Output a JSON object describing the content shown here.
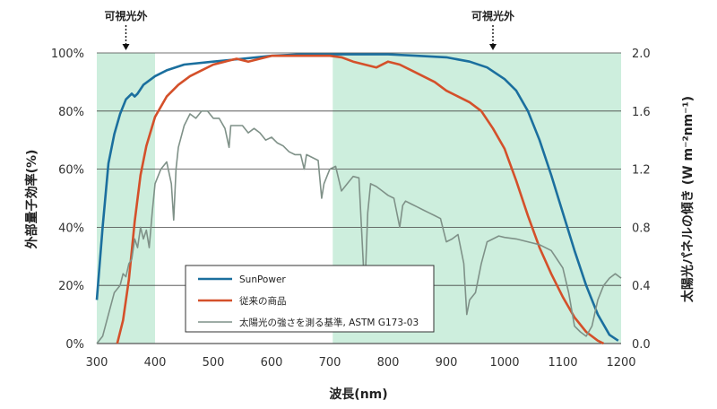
{
  "chart_data": {
    "type": "line",
    "xlabel": "波長(nm)",
    "ylabel_left": "外部量子効率(%)",
    "ylabel_right": "太陽光パネルの傾き (W m⁻²nm⁻¹)",
    "xlim": [
      300,
      1200
    ],
    "ylim_left": [
      0,
      100
    ],
    "ylim_right": [
      0,
      2.0
    ],
    "x_ticks": [
      "300",
      "400",
      "500",
      "600",
      "700",
      "800",
      "900",
      "1000",
      "1100",
      "1200"
    ],
    "y_left_ticks": [
      "0%",
      "20%",
      "40%",
      "60%",
      "80%",
      "100%"
    ],
    "y_right_ticks": [
      "0.0",
      "0.4",
      "0.8",
      "1.2",
      "1.6",
      "2.0"
    ],
    "grid": "horizontal",
    "legend_placement": "bottom-center",
    "shaded_regions": [
      {
        "x": [
          300,
          400
        ],
        "color": "#cdeedd",
        "annotation": "可視光外",
        "arrow_x": 350
      },
      {
        "x": [
          705,
          1200
        ],
        "color": "#cdeedd",
        "annotation": "可視光外",
        "arrow_x": 980
      }
    ],
    "series": [
      {
        "name": "SunPower",
        "axis": "left",
        "color": "#1b6f9e",
        "points": [
          [
            300,
            15
          ],
          [
            310,
            40
          ],
          [
            320,
            62
          ],
          [
            330,
            72
          ],
          [
            340,
            79
          ],
          [
            350,
            84
          ],
          [
            360,
            86
          ],
          [
            365,
            85
          ],
          [
            370,
            86
          ],
          [
            380,
            89
          ],
          [
            400,
            92
          ],
          [
            420,
            94
          ],
          [
            450,
            96
          ],
          [
            500,
            97
          ],
          [
            550,
            98
          ],
          [
            600,
            99
          ],
          [
            650,
            99.5
          ],
          [
            700,
            99.5
          ],
          [
            750,
            99.5
          ],
          [
            800,
            99.5
          ],
          [
            850,
            99
          ],
          [
            900,
            98.5
          ],
          [
            940,
            97
          ],
          [
            970,
            95
          ],
          [
            1000,
            91
          ],
          [
            1020,
            87
          ],
          [
            1040,
            80
          ],
          [
            1060,
            70
          ],
          [
            1080,
            58
          ],
          [
            1100,
            45
          ],
          [
            1120,
            32
          ],
          [
            1140,
            20
          ],
          [
            1160,
            10
          ],
          [
            1180,
            3
          ],
          [
            1195,
            1
          ]
        ]
      },
      {
        "name": "従来の商品",
        "axis": "left",
        "color": "#d4502a",
        "points": [
          [
            335,
            0
          ],
          [
            345,
            8
          ],
          [
            355,
            22
          ],
          [
            365,
            42
          ],
          [
            375,
            58
          ],
          [
            385,
            68
          ],
          [
            400,
            78
          ],
          [
            420,
            85
          ],
          [
            440,
            89
          ],
          [
            460,
            92
          ],
          [
            480,
            94
          ],
          [
            500,
            96
          ],
          [
            520,
            97
          ],
          [
            540,
            98
          ],
          [
            560,
            97
          ],
          [
            580,
            98
          ],
          [
            600,
            99
          ],
          [
            650,
            99
          ],
          [
            700,
            99
          ],
          [
            720,
            98.5
          ],
          [
            740,
            97
          ],
          [
            760,
            96
          ],
          [
            780,
            95
          ],
          [
            800,
            97
          ],
          [
            820,
            96
          ],
          [
            840,
            94
          ],
          [
            860,
            92
          ],
          [
            880,
            90
          ],
          [
            900,
            87
          ],
          [
            920,
            85
          ],
          [
            940,
            83
          ],
          [
            960,
            80
          ],
          [
            980,
            74
          ],
          [
            1000,
            67
          ],
          [
            1020,
            56
          ],
          [
            1040,
            44
          ],
          [
            1060,
            33
          ],
          [
            1080,
            24
          ],
          [
            1100,
            16
          ],
          [
            1120,
            9
          ],
          [
            1140,
            4
          ],
          [
            1160,
            1
          ],
          [
            1170,
            0
          ]
        ]
      },
      {
        "name": "太陽光の強さを測る基準, ASTM G173-03",
        "axis": "right",
        "color": "#7f9188",
        "points": [
          [
            300,
            0
          ],
          [
            310,
            0.05
          ],
          [
            320,
            0.2
          ],
          [
            330,
            0.35
          ],
          [
            340,
            0.4
          ],
          [
            345,
            0.48
          ],
          [
            350,
            0.46
          ],
          [
            355,
            0.55
          ],
          [
            360,
            0.58
          ],
          [
            365,
            0.72
          ],
          [
            370,
            0.66
          ],
          [
            375,
            0.8
          ],
          [
            380,
            0.72
          ],
          [
            385,
            0.78
          ],
          [
            390,
            0.66
          ],
          [
            395,
            0.9
          ],
          [
            400,
            1.1
          ],
          [
            410,
            1.2
          ],
          [
            420,
            1.25
          ],
          [
            428,
            1.1
          ],
          [
            432,
            0.85
          ],
          [
            436,
            1.2
          ],
          [
            440,
            1.35
          ],
          [
            450,
            1.5
          ],
          [
            460,
            1.58
          ],
          [
            470,
            1.55
          ],
          [
            480,
            1.6
          ],
          [
            490,
            1.6
          ],
          [
            500,
            1.55
          ],
          [
            510,
            1.55
          ],
          [
            520,
            1.48
          ],
          [
            527,
            1.35
          ],
          [
            530,
            1.5
          ],
          [
            540,
            1.5
          ],
          [
            550,
            1.5
          ],
          [
            560,
            1.45
          ],
          [
            570,
            1.48
          ],
          [
            580,
            1.45
          ],
          [
            590,
            1.4
          ],
          [
            600,
            1.42
          ],
          [
            610,
            1.38
          ],
          [
            620,
            1.36
          ],
          [
            630,
            1.32
          ],
          [
            640,
            1.3
          ],
          [
            650,
            1.3
          ],
          [
            656,
            1.2
          ],
          [
            660,
            1.3
          ],
          [
            670,
            1.28
          ],
          [
            680,
            1.26
          ],
          [
            686,
            1.0
          ],
          [
            690,
            1.1
          ],
          [
            700,
            1.2
          ],
          [
            710,
            1.22
          ],
          [
            720,
            1.05
          ],
          [
            730,
            1.1
          ],
          [
            740,
            1.15
          ],
          [
            750,
            1.14
          ],
          [
            760,
            0.35
          ],
          [
            765,
            0.9
          ],
          [
            770,
            1.1
          ],
          [
            780,
            1.08
          ],
          [
            790,
            1.05
          ],
          [
            800,
            1.02
          ],
          [
            810,
            1.0
          ],
          [
            820,
            0.8
          ],
          [
            825,
            0.95
          ],
          [
            830,
            0.98
          ],
          [
            840,
            0.96
          ],
          [
            850,
            0.94
          ],
          [
            860,
            0.92
          ],
          [
            870,
            0.9
          ],
          [
            880,
            0.88
          ],
          [
            890,
            0.86
          ],
          [
            900,
            0.7
          ],
          [
            910,
            0.72
          ],
          [
            920,
            0.75
          ],
          [
            930,
            0.55
          ],
          [
            935,
            0.2
          ],
          [
            940,
            0.3
          ],
          [
            950,
            0.35
          ],
          [
            960,
            0.55
          ],
          [
            970,
            0.7
          ],
          [
            980,
            0.72
          ],
          [
            990,
            0.74
          ],
          [
            1000,
            0.73
          ],
          [
            1020,
            0.72
          ],
          [
            1040,
            0.7
          ],
          [
            1060,
            0.68
          ],
          [
            1080,
            0.64
          ],
          [
            1090,
            0.58
          ],
          [
            1100,
            0.52
          ],
          [
            1110,
            0.35
          ],
          [
            1120,
            0.12
          ],
          [
            1130,
            0.08
          ],
          [
            1140,
            0.05
          ],
          [
            1150,
            0.12
          ],
          [
            1160,
            0.3
          ],
          [
            1170,
            0.4
          ],
          [
            1180,
            0.45
          ],
          [
            1190,
            0.48
          ],
          [
            1200,
            0.45
          ]
        ]
      }
    ]
  }
}
